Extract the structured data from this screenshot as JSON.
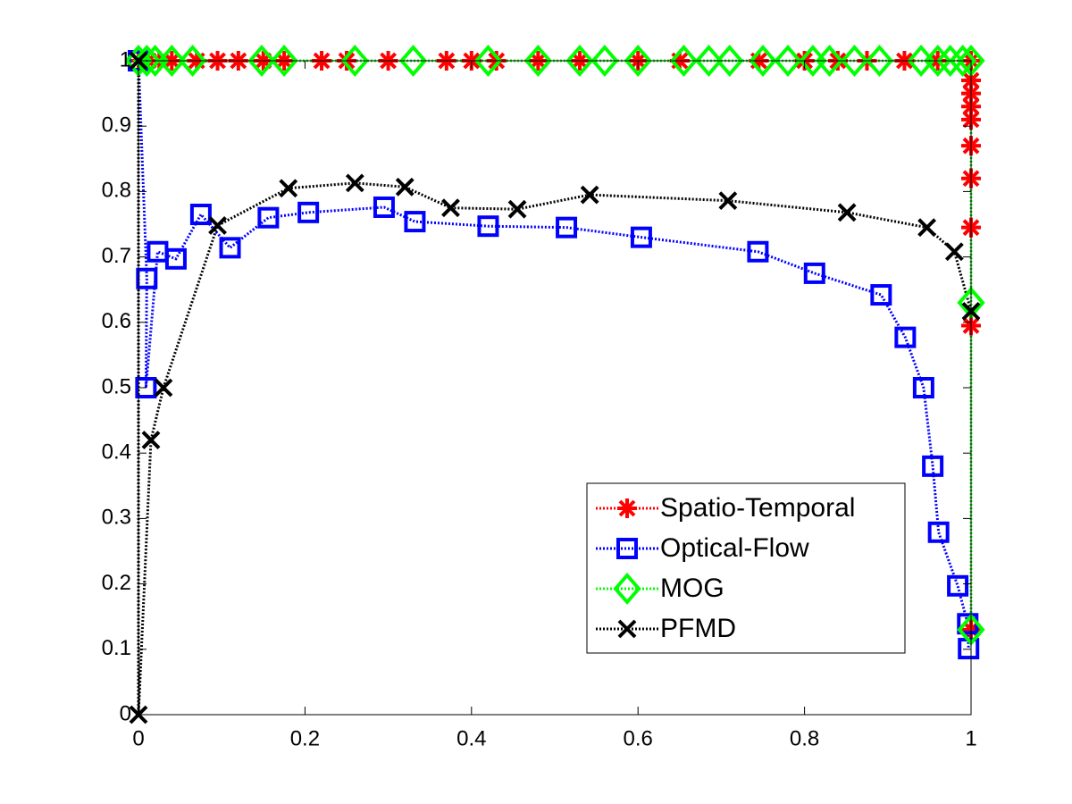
{
  "chart_data": {
    "type": "line",
    "xlim": [
      0,
      1
    ],
    "ylim": [
      0,
      1
    ],
    "xticks": [
      0,
      0.2,
      0.4,
      0.6,
      0.8,
      1
    ],
    "yticks": [
      0,
      0.1,
      0.2,
      0.3,
      0.4,
      0.5,
      0.6,
      0.7,
      0.8,
      0.9,
      1
    ],
    "grid": false,
    "legend_position": "lower-right",
    "series": [
      {
        "name": "Spatio-Temporal",
        "color": "#ff0000",
        "marker": "asterisk",
        "x": [
          0,
          0.012,
          0.025,
          0.04,
          0.07,
          0.095,
          0.12,
          0.15,
          0.175,
          0.22,
          0.25,
          0.3,
          0.37,
          0.4,
          0.43,
          0.48,
          0.53,
          0.6,
          0.65,
          0.745,
          0.8,
          0.84,
          0.875,
          0.92,
          0.96,
          1,
          1,
          1,
          1,
          1,
          1,
          1,
          1,
          1,
          1
        ],
        "values": [
          1,
          1,
          1,
          1,
          1,
          1,
          1,
          1,
          1,
          1,
          1,
          1,
          1,
          1,
          1,
          1,
          1,
          1,
          1,
          1,
          1,
          1,
          1,
          1,
          1,
          1,
          0.97,
          0.95,
          0.93,
          0.91,
          0.87,
          0.82,
          0.745,
          0.595,
          0.13
        ]
      },
      {
        "name": "Optical-Flow",
        "color": "#0000ff",
        "marker": "square",
        "x": [
          0,
          0.01,
          0.009,
          0.023,
          0.045,
          0.075,
          0.11,
          0.156,
          0.204,
          0.295,
          0.332,
          0.42,
          0.514,
          0.604,
          0.744,
          0.812,
          0.892,
          0.921,
          0.943,
          0.954,
          0.961,
          0.984,
          0.996,
          0.997
        ],
        "values": [
          1,
          0.667,
          0.5,
          0.708,
          0.697,
          0.765,
          0.714,
          0.76,
          0.768,
          0.776,
          0.754,
          0.747,
          0.745,
          0.73,
          0.708,
          0.675,
          0.642,
          0.577,
          0.5,
          0.38,
          0.279,
          0.197,
          0.139,
          0.101
        ]
      },
      {
        "name": "MOG",
        "color": "#00ff00",
        "marker": "diamond",
        "x": [
          0,
          0.01,
          0.02,
          0.04,
          0.065,
          0.148,
          0.175,
          0.26,
          0.33,
          0.42,
          0.48,
          0.53,
          0.56,
          0.6,
          0.655,
          0.685,
          0.71,
          0.75,
          0.78,
          0.81,
          0.83,
          0.86,
          0.89,
          0.94,
          0.96,
          0.975,
          0.99,
          1,
          1,
          1
        ],
        "values": [
          1,
          1,
          1,
          1,
          1,
          1,
          1,
          1,
          1,
          1,
          1,
          1,
          1,
          1,
          1,
          1,
          1,
          1,
          1,
          1,
          1,
          1,
          1,
          1,
          1,
          1,
          1,
          1,
          0.63,
          0.13
        ]
      },
      {
        "name": "PFMD",
        "color": "#000000",
        "marker": "x",
        "x": [
          0,
          0,
          0.015,
          0.03,
          0.095,
          0.18,
          0.26,
          0.32,
          0.375,
          0.455,
          0.542,
          0.708,
          0.851,
          0.947,
          0.98,
          1
        ],
        "values": [
          1,
          0,
          0.42,
          0.5,
          0.748,
          0.805,
          0.813,
          0.807,
          0.775,
          0.773,
          0.795,
          0.786,
          0.768,
          0.745,
          0.708,
          0.617
        ]
      }
    ]
  }
}
